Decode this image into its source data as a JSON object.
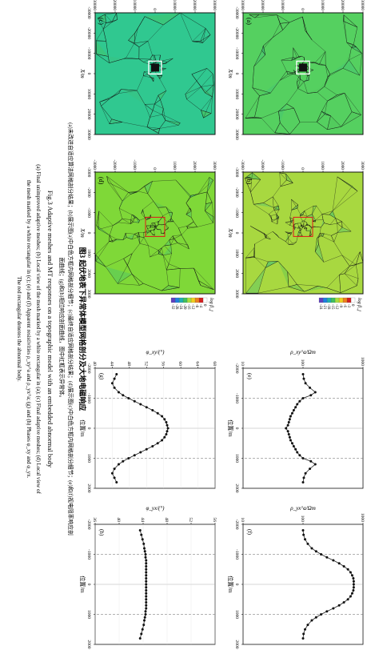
{
  "figure": {
    "caption_cn": "图3 起伏地表下异常体模型网格剖分及大地电磁响应",
    "desc_cn_line1": "(a)未改进自适应算法网格剖分结果；(b)展示图(a)中白色方框内网格剖分细节；(c)最终自适应网格剖分结果；(d)展示图(c)中白色方框内网格剖分细节；(e)和(f)视电阻率响应剖",
    "desc_cn_line2": "面曲线；(g)和(h)相位响应剖面曲线，图中红框表示异常体。",
    "caption_en": "Fig.3  Adaptive meshes and MT responses on a topographic model with an embedded abnormal body",
    "desc_en_line1": "(a) Final unimproved adaptive meshes; (b) Local view of the mesh marked by a white rectangular in (a); (c) Final adaptive meshes; (d) Local view of",
    "desc_en_line2": "the mesh marked by a white rectangular in (c); (e) and (f) Apparent resistivities ρ_xy^a and ρ_yx^a; (g) and (h) Phases φ_xy and φ_yx.",
    "desc_en_line3": "The red rectangular denotes the abnormal body."
  },
  "mesh_panels": [
    {
      "letter": "(a)",
      "ylabel": "Z/m",
      "xlabel": "X/m",
      "xticks": [
        "-30000",
        "-20000",
        "-10000",
        "0",
        "10000",
        "20000",
        "30000"
      ],
      "yticks": [
        "30000",
        "20000",
        "10000",
        "0",
        "-10000",
        "-20000",
        "-30000"
      ]
    },
    {
      "letter": "(b)",
      "ylabel": "",
      "xlabel": "X/m",
      "xticks": [
        "-3000",
        "-2000",
        "-1000",
        "0",
        "1000",
        "2000",
        "3000"
      ],
      "yticks": [
        "3000",
        "2000",
        "1000",
        "0",
        "-1000",
        "-2000",
        "-3000"
      ]
    },
    {
      "letter": "(c)",
      "ylabel": "Z/m",
      "xlabel": "X/m",
      "xticks": [
        "-30000",
        "-20000",
        "-10000",
        "0",
        "10000",
        "20000",
        "30000"
      ],
      "yticks": [
        "30000",
        "20000",
        "10000",
        "0",
        "-10000",
        "-20000",
        "-30000"
      ]
    },
    {
      "letter": "(d)",
      "ylabel": "",
      "xlabel": "X/m",
      "xticks": [
        "-3000",
        "-2000",
        "-1000",
        "0",
        "1000",
        "2000",
        "3000"
      ],
      "yticks": [
        "3000",
        "2000",
        "1000",
        "0",
        "-1000",
        "-2000",
        "-3000"
      ]
    }
  ],
  "colorbars": [
    {
      "title": "log β_j",
      "ticks": [
        "0",
        "-3",
        "-6",
        "-9",
        "-12",
        "-15",
        "-18",
        "-21",
        "-24"
      ]
    },
    {
      "title": "log β_j",
      "ticks": [
        "0",
        "-4",
        "-8",
        "-12",
        "-16",
        "-20",
        "-24",
        "-28",
        "-32"
      ]
    }
  ],
  "colors": {
    "grid": "#111111",
    "dashed": "#666666",
    "rect": "#e01818",
    "curve": "#222222",
    "fill_a": "#55d060",
    "fill_b": "#a8d840",
    "fill_c": "#30c890",
    "fill_d": "#7fd838"
  },
  "chart_data": [
    {
      "type": "line",
      "panel": "(e)",
      "ylabel": "ρ_xy^a/Ωm",
      "xlabel": "位置/m",
      "yscale": "log",
      "ylim": [
        10,
        1000
      ],
      "yticks": [
        "10",
        "100",
        "1000"
      ],
      "xticks": [
        "-2000",
        "-1000",
        "0",
        "1000",
        "2000"
      ],
      "x": [
        -1800,
        -1650,
        -1500,
        -1350,
        -1200,
        -1100,
        -1000,
        -900,
        -800,
        -700,
        -600,
        -500,
        -400,
        -300,
        -200,
        -100,
        0,
        100,
        200,
        300,
        400,
        500,
        600,
        700,
        800,
        900,
        1000,
        1100,
        1200,
        1350,
        1500,
        1650,
        1800
      ],
      "y": [
        100,
        103,
        110,
        130,
        160,
        135,
        100,
        88,
        80,
        75,
        70,
        66,
        62,
        60,
        58,
        56,
        52,
        56,
        58,
        60,
        62,
        66,
        70,
        75,
        80,
        88,
        100,
        135,
        160,
        130,
        110,
        103,
        100
      ]
    },
    {
      "type": "line",
      "panel": "(f)",
      "ylabel": "ρ_yx^a/Ωm",
      "xlabel": "位置/m",
      "yscale": "log",
      "ylim": [
        10,
        1000
      ],
      "yticks": [
        "10",
        "100",
        "1000"
      ],
      "xticks": [
        "-2000",
        "-1000",
        "0",
        "1000",
        "2000"
      ],
      "x": [
        -1800,
        -1650,
        -1500,
        -1350,
        -1200,
        -1100,
        -1000,
        -900,
        -800,
        -700,
        -600,
        -500,
        -400,
        -300,
        -200,
        -100,
        0,
        100,
        200,
        300,
        400,
        500,
        600,
        700,
        800,
        900,
        1000,
        1100,
        1200,
        1350,
        1500,
        1650,
        1800
      ],
      "y": [
        100,
        102,
        108,
        120,
        140,
        165,
        200,
        250,
        320,
        400,
        480,
        560,
        620,
        660,
        690,
        700,
        700,
        700,
        690,
        660,
        620,
        560,
        480,
        400,
        320,
        250,
        200,
        165,
        140,
        120,
        108,
        102,
        100
      ]
    },
    {
      "type": "line",
      "panel": "(g)",
      "ylabel": "φ_xy/(°)",
      "xlabel": "位置/m",
      "ylim": [
        40,
        68
      ],
      "yticks": [
        "40",
        "44",
        "48",
        "52",
        "56",
        "60",
        "64",
        "68"
      ],
      "xticks": [
        "-2000",
        "-1000",
        "0",
        "1000",
        "2000"
      ],
      "x": [
        -1800,
        -1650,
        -1500,
        -1350,
        -1200,
        -1100,
        -1000,
        -900,
        -800,
        -700,
        -600,
        -500,
        -400,
        -300,
        -200,
        -100,
        0,
        100,
        200,
        300,
        400,
        500,
        600,
        700,
        800,
        900,
        1000,
        1100,
        1200,
        1350,
        1500,
        1650,
        1800
      ],
      "y": [
        45,
        44.5,
        44,
        44.5,
        45.5,
        46.5,
        47.8,
        49.2,
        50.6,
        52,
        53.4,
        54.6,
        55.6,
        56.2,
        56.6,
        56.8,
        57,
        56.8,
        56.6,
        56.2,
        55.6,
        54.6,
        53.4,
        52,
        50.6,
        49.2,
        47.8,
        46.5,
        45.5,
        44.5,
        44,
        44.5,
        45
      ]
    },
    {
      "type": "line",
      "panel": "(h)",
      "ylabel": "φ_yx/(°)",
      "xlabel": "位置/m",
      "ylim": [
        36,
        56
      ],
      "yticks": [
        "36",
        "40",
        "44",
        "48",
        "52",
        "56"
      ],
      "xticks": [
        "-2000",
        "-1000",
        "0",
        "1000",
        "2000"
      ],
      "x": [
        -1800,
        -1650,
        -1500,
        -1350,
        -1200,
        -1100,
        -1000,
        -900,
        -800,
        -700,
        -600,
        -500,
        -400,
        -300,
        -200,
        -100,
        0,
        100,
        200,
        300,
        400,
        500,
        600,
        700,
        800,
        900,
        1000,
        1100,
        1200,
        1350,
        1500,
        1650,
        1800
      ],
      "y": [
        43.5,
        43.7,
        43.9,
        44.1,
        44.2,
        44.3,
        44.4,
        44.4,
        44.5,
        44.5,
        44.5,
        44.5,
        44.5,
        44.5,
        44.5,
        44.5,
        44.5,
        44.5,
        44.5,
        44.5,
        44.5,
        44.5,
        44.5,
        44.5,
        44.5,
        44.4,
        44.4,
        44.3,
        44.2,
        44.1,
        43.9,
        43.7,
        43.5
      ]
    }
  ]
}
